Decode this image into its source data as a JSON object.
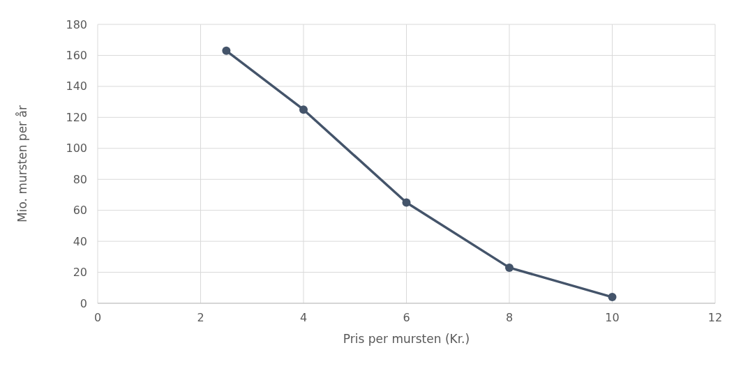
{
  "chart_data": {
    "type": "line",
    "xlabel": "Pris per mursten (Kr.)",
    "ylabel": "Mio. mursten per år",
    "x": [
      2.5,
      4,
      6,
      8,
      10
    ],
    "series": [
      {
        "color": "#44546a",
        "values": [
          163,
          125,
          65,
          23,
          4
        ]
      }
    ],
    "xlim": [
      0,
      12
    ],
    "xticks": [
      0,
      2,
      4,
      6,
      8,
      10,
      12
    ],
    "ylim": [
      0,
      180
    ],
    "yticks": [
      0,
      20,
      40,
      60,
      80,
      100,
      120,
      140,
      160,
      180
    ],
    "grid": true,
    "marker": "circle",
    "line_style": "solid"
  }
}
